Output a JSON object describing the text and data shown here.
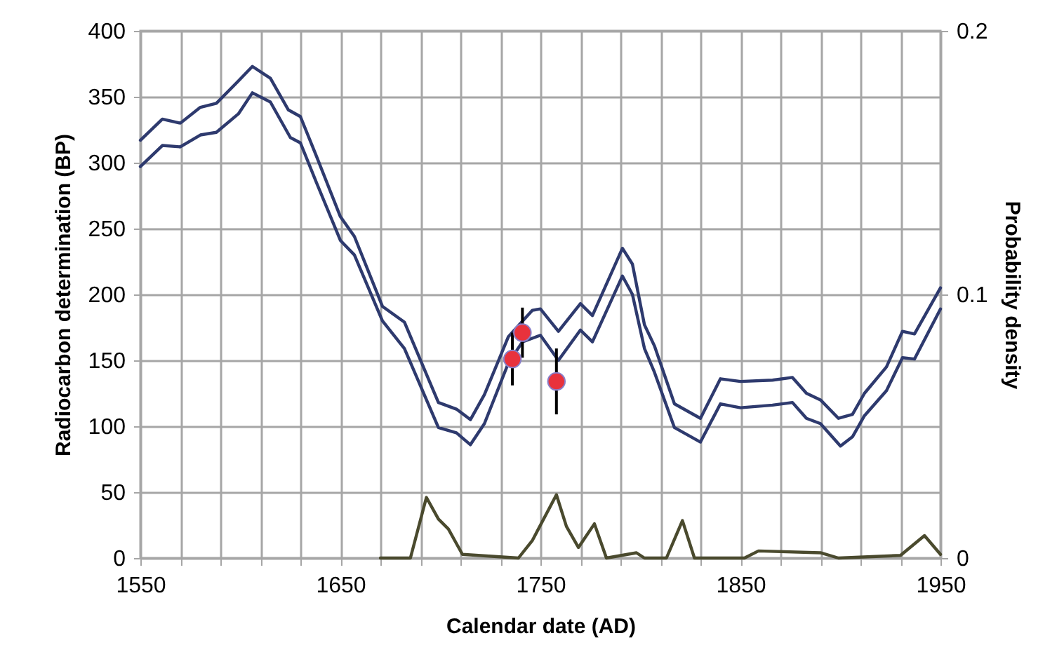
{
  "chart_data": {
    "type": "line",
    "xlabel": "Calendar date (AD)",
    "ylabel": "Radiocarbon determination (BP)",
    "y2label": "Probability density",
    "xlim": [
      1550,
      1950
    ],
    "xticks": [
      1550,
      {
        "value": 1570,
        "label": null
      },
      {
        "value": 1590,
        "label": null
      },
      {
        "value": 1610,
        "label": null
      },
      {
        "value": 1630,
        "label": null
      },
      1650,
      {
        "value": 1670,
        "label": null
      },
      {
        "value": 1690,
        "label": null
      },
      {
        "value": 1710,
        "label": null
      },
      {
        "value": 1730,
        "label": null
      },
      1750,
      {
        "value": 1770,
        "label": null
      },
      {
        "value": 1790,
        "label": null
      },
      {
        "value": 1810,
        "label": null
      },
      {
        "value": 1830,
        "label": null
      },
      1850,
      {
        "value": 1870,
        "label": null
      },
      {
        "value": 1890,
        "label": null
      },
      {
        "value": 1910,
        "label": null
      },
      {
        "value": 1930,
        "label": null
      },
      1950
    ],
    "ylim": [
      0,
      400
    ],
    "yticks": [
      0,
      50,
      100,
      150,
      200,
      250,
      300,
      350,
      400
    ],
    "y2lim": [
      0,
      0.2
    ],
    "y2ticks": [
      0,
      0.1,
      0.2
    ],
    "grid": true,
    "line_style": "solid",
    "series": [
      {
        "color": "#2e3a6e",
        "x": [
          1550,
          1561,
          1570,
          1580,
          1588,
          1599,
          1606,
          1615,
          1624,
          1630,
          1638,
          1650,
          1657,
          1671,
          1682,
          1699,
          1708,
          1715,
          1722,
          1734,
          1746,
          1750,
          1759,
          1770,
          1776,
          1791,
          1796,
          1802,
          1807,
          1817,
          1830,
          1840,
          1850,
          1866,
          1876,
          1883,
          1890,
          1899,
          1906,
          1912,
          1923,
          1931,
          1937,
          1950
        ],
        "values": [
          317,
          333,
          330,
          342,
          345,
          362,
          373,
          364,
          340,
          335,
          305,
          259,
          244,
          191,
          179,
          118,
          113,
          105,
          124,
          168,
          188,
          189,
          172,
          193,
          184,
          235,
          223,
          177,
          161,
          117,
          106,
          136,
          134,
          135,
          137,
          125,
          120,
          106,
          109,
          125,
          145,
          172,
          170,
          205
        ]
      },
      {
        "color": "#2e3a6e",
        "x": [
          1550,
          1561,
          1570,
          1580,
          1588,
          1599,
          1606,
          1615,
          1625,
          1630,
          1638,
          1650,
          1657,
          1671,
          1682,
          1699,
          1708,
          1715,
          1722,
          1734,
          1741,
          1750,
          1759,
          1770,
          1776,
          1791,
          1796,
          1802,
          1807,
          1817,
          1830,
          1840,
          1850,
          1866,
          1876,
          1883,
          1890,
          1900,
          1906,
          1912,
          1923,
          1931,
          1937,
          1950
        ],
        "values": [
          297,
          313,
          312,
          321,
          323,
          337,
          353,
          346,
          319,
          315,
          285,
          241,
          230,
          180,
          159,
          99,
          95,
          86,
          102,
          148,
          164,
          169,
          150,
          173,
          164,
          214,
          200,
          159,
          141,
          99,
          88,
          117,
          114,
          116,
          118,
          106,
          102,
          85,
          92,
          108,
          127,
          152,
          151,
          189
        ]
      },
      {
        "type": "scatter",
        "color": "#e8323c",
        "marker": "circle",
        "x": [
          1736,
          1741,
          1758
        ],
        "values": [
          151,
          171,
          134
        ],
        "errors": [
          20,
          19,
          25
        ]
      },
      {
        "axis": "y2",
        "color": "#4a4a2e",
        "x": [
          1670,
          1685,
          1693,
          1699,
          1704,
          1711,
          1739,
          1746,
          1758,
          1763,
          1769,
          1777,
          1783,
          1798,
          1802,
          1813,
          1821,
          1827,
          1852,
          1859,
          1890,
          1899,
          1930,
          1942,
          1950
        ],
        "values": [
          0,
          0,
          0.023,
          0.0148,
          0.011,
          0.0014,
          0,
          0.0067,
          0.024,
          0.012,
          0.004,
          0.013,
          0,
          0.002,
          0,
          0,
          0.0142,
          0,
          0,
          0.0027,
          0.002,
          0,
          0.001,
          0.0085,
          0.0014
        ]
      }
    ]
  }
}
